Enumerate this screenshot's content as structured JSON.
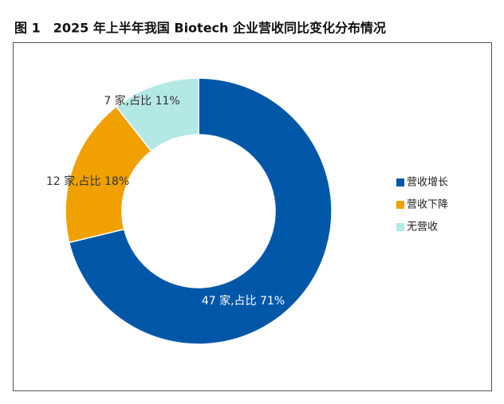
{
  "chart_data": {
    "type": "donut",
    "title": "图 1　2025 年上半年我国 Biotech 企业营收同比变化分布情况",
    "categories": [
      "营收增长",
      "营收下降",
      "无营收"
    ],
    "values": [
      47,
      12,
      7
    ],
    "value_labels": [
      "47 家,占比 71%",
      "12 家,占比 18%",
      "7 家,占比 11%"
    ],
    "colors": [
      "#0057a8",
      "#f0a000",
      "#b3e8e5"
    ],
    "legend": "right"
  }
}
